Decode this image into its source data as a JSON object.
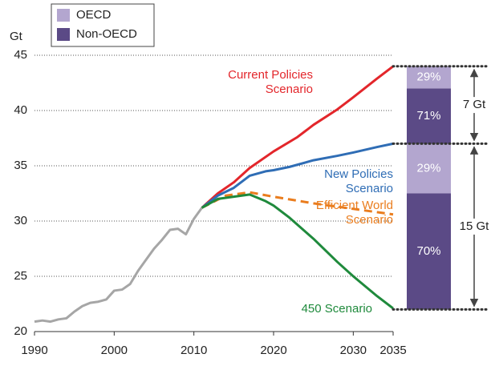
{
  "chart_data": {
    "type": "line",
    "y_label": "Gt",
    "xlim": [
      1990,
      2035
    ],
    "xticks": [
      1990,
      2000,
      2010,
      2020,
      2030,
      2035
    ],
    "ylim": [
      20,
      45
    ],
    "yticks": [
      20,
      25,
      30,
      35,
      40,
      45
    ],
    "grid": true,
    "series": [
      {
        "color": "#a6a6a6",
        "dashed": false,
        "x": [
          1990,
          1991,
          1992,
          1993,
          1994,
          1995,
          1996,
          1997,
          1998,
          1999,
          2000,
          2001,
          2002,
          2003,
          2004,
          2005,
          2006,
          2007,
          2008,
          2009,
          2010,
          2011
        ],
        "values": [
          20.9,
          21.0,
          20.9,
          21.1,
          21.2,
          21.8,
          22.3,
          22.6,
          22.7,
          22.9,
          23.7,
          23.8,
          24.3,
          25.5,
          26.5,
          27.5,
          28.3,
          29.2,
          29.3,
          28.8,
          30.2,
          31.2
        ]
      },
      {
        "label": [
          "Current Policies",
          "Scenario"
        ],
        "color": "#e3262b",
        "dashed": false,
        "x": [
          2011,
          2013,
          2015,
          2017,
          2020,
          2023,
          2025,
          2028,
          2030,
          2033,
          2035
        ],
        "values": [
          31.2,
          32.5,
          33.5,
          34.8,
          36.3,
          37.6,
          38.7,
          40.1,
          41.2,
          42.9,
          44.0
        ]
      },
      {
        "label": [
          "New Policies",
          "Scenario"
        ],
        "color": "#2f6db5",
        "dashed": false,
        "x": [
          2011,
          2013,
          2015,
          2017,
          2019,
          2020,
          2022,
          2025,
          2028,
          2030,
          2033,
          2035
        ],
        "values": [
          31.2,
          32.3,
          33.0,
          34.1,
          34.5,
          34.6,
          34.9,
          35.5,
          35.9,
          36.2,
          36.7,
          37.0
        ]
      },
      {
        "label": [
          "Efficient World",
          "Scenario"
        ],
        "color": "#ea7d1e",
        "dashed": true,
        "x": [
          2011,
          2014,
          2017,
          2020,
          2025,
          2030,
          2035
        ],
        "values": [
          31.2,
          32.3,
          32.6,
          32.2,
          31.6,
          31.1,
          30.6
        ]
      },
      {
        "label": [
          "450 Scenario"
        ],
        "color": "#1f8a3c",
        "dashed": false,
        "x": [
          2011,
          2013,
          2015,
          2017,
          2019,
          2020,
          2022,
          2025,
          2028,
          2030,
          2033,
          2035
        ],
        "values": [
          31.2,
          32.0,
          32.2,
          32.4,
          31.8,
          31.4,
          30.3,
          28.4,
          26.3,
          25.0,
          23.2,
          22.1
        ]
      }
    ],
    "bar": {
      "base": 22,
      "segments": [
        {
          "name": "Non-OECD",
          "color": "#5b4a86",
          "value": 10.5,
          "share": 70,
          "share_label": "70%"
        },
        {
          "name": "OECD",
          "color": "#b3a6cf",
          "value": 4.5,
          "share": 29,
          "share_label": "29%"
        },
        {
          "name": "Non-OECD",
          "color": "#5b4a86",
          "value": 5,
          "share": 71,
          "share_label": "71%"
        },
        {
          "name": "OECD",
          "color": "#b3a6cf",
          "value": 2,
          "share": 29,
          "share_label": "29%"
        }
      ],
      "brackets": [
        {
          "value": 15,
          "label": "15 Gt"
        },
        {
          "value": 7,
          "label": "7 Gt"
        }
      ]
    },
    "legend": [
      {
        "name": "OECD",
        "color": "#b3a6cf"
      },
      {
        "name": "Non-OECD",
        "color": "#5b4a86"
      }
    ]
  }
}
